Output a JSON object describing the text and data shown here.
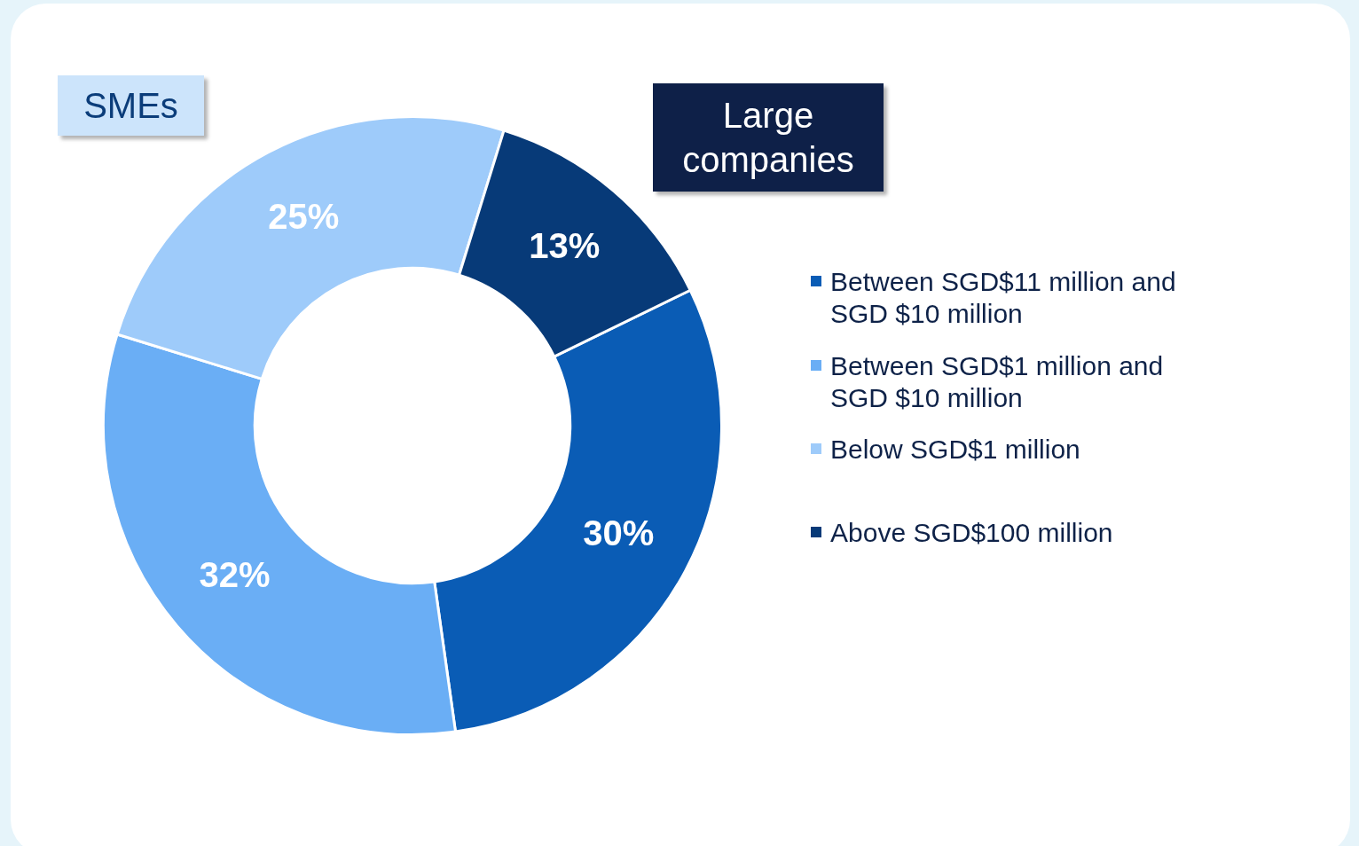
{
  "chart_data": {
    "type": "donut",
    "categories": [
      "Between SGD$11 million and SGD $10 million",
      "Between SGD$1 million and SGD $10 million",
      "Below SGD$1 million",
      "Above SGD$100 million"
    ],
    "values": [
      30,
      32,
      25,
      13
    ],
    "colors": [
      "#0a5cb5",
      "#6aaef5",
      "#9ecbfa",
      "#073a78"
    ],
    "value_labels": [
      "30%",
      "32%",
      "25%",
      "13%"
    ],
    "legend": "right",
    "annotations": [
      "SMEs",
      "Large companies"
    ]
  }
}
